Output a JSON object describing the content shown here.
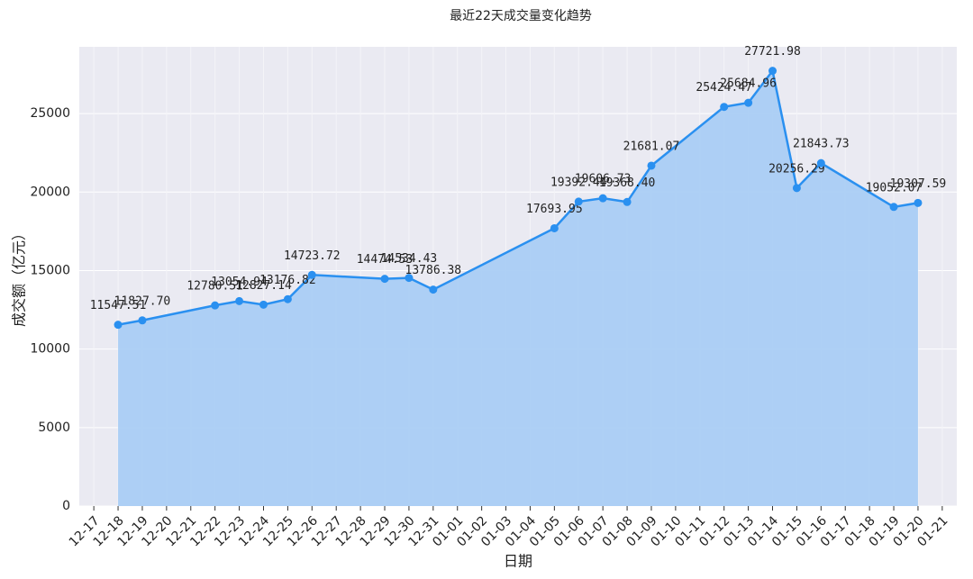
{
  "chart_data": {
    "type": "area-line",
    "title": "最近22天成交量变化趋势",
    "xlabel": "日期",
    "ylabel": "成交额（亿元）",
    "xticks": [
      "12-17",
      "12-18",
      "12-19",
      "12-20",
      "12-21",
      "12-22",
      "12-23",
      "12-24",
      "12-25",
      "12-26",
      "12-27",
      "12-28",
      "12-29",
      "12-30",
      "12-31",
      "01-01",
      "01-02",
      "01-03",
      "01-04",
      "01-05",
      "01-06",
      "01-07",
      "01-08",
      "01-09",
      "01-10",
      "01-11",
      "01-12",
      "01-13",
      "01-14",
      "01-15",
      "01-16",
      "01-17",
      "01-18",
      "01-19",
      "01-20",
      "01-21"
    ],
    "x": [
      "12-18",
      "12-19",
      "12-22",
      "12-23",
      "12-24",
      "12-25",
      "12-26",
      "12-29",
      "12-30",
      "12-31",
      "01-05",
      "01-06",
      "01-07",
      "01-08",
      "01-09",
      "01-12",
      "01-13",
      "01-14",
      "01-15",
      "01-16",
      "01-19",
      "01-20"
    ],
    "series": [
      {
        "color": "#2a90f0",
        "fill": "#aacdf4",
        "values": [
          11547.51,
          11827.7,
          12780.51,
          13054.94,
          12827.14,
          13176.82,
          14723.72,
          14474.53,
          14534.43,
          13786.38,
          17693.95,
          19392.44,
          19606.73,
          19368.4,
          21681.07,
          25424.47,
          25684.96,
          27721.98,
          20256.29,
          21843.73,
          19052.07,
          19307.59
        ],
        "value_labels": [
          "11547.51",
          "11827.70",
          "12780.51",
          "13054.94",
          "12827.14",
          "13176.82",
          "14723.72",
          "14474.53",
          "14534.43",
          "13786.38",
          "17693.95",
          "19392.44",
          "19606.73",
          "19368.40",
          "21681.07",
          "25424.47",
          "25684.96",
          "27721.98",
          "20256.29",
          "21843.73",
          "19052.07",
          "19307.59"
        ]
      }
    ],
    "ylim": [
      0,
      29250
    ],
    "yticks": [
      0,
      5000,
      10000,
      15000,
      20000,
      25000
    ],
    "grid": true
  }
}
